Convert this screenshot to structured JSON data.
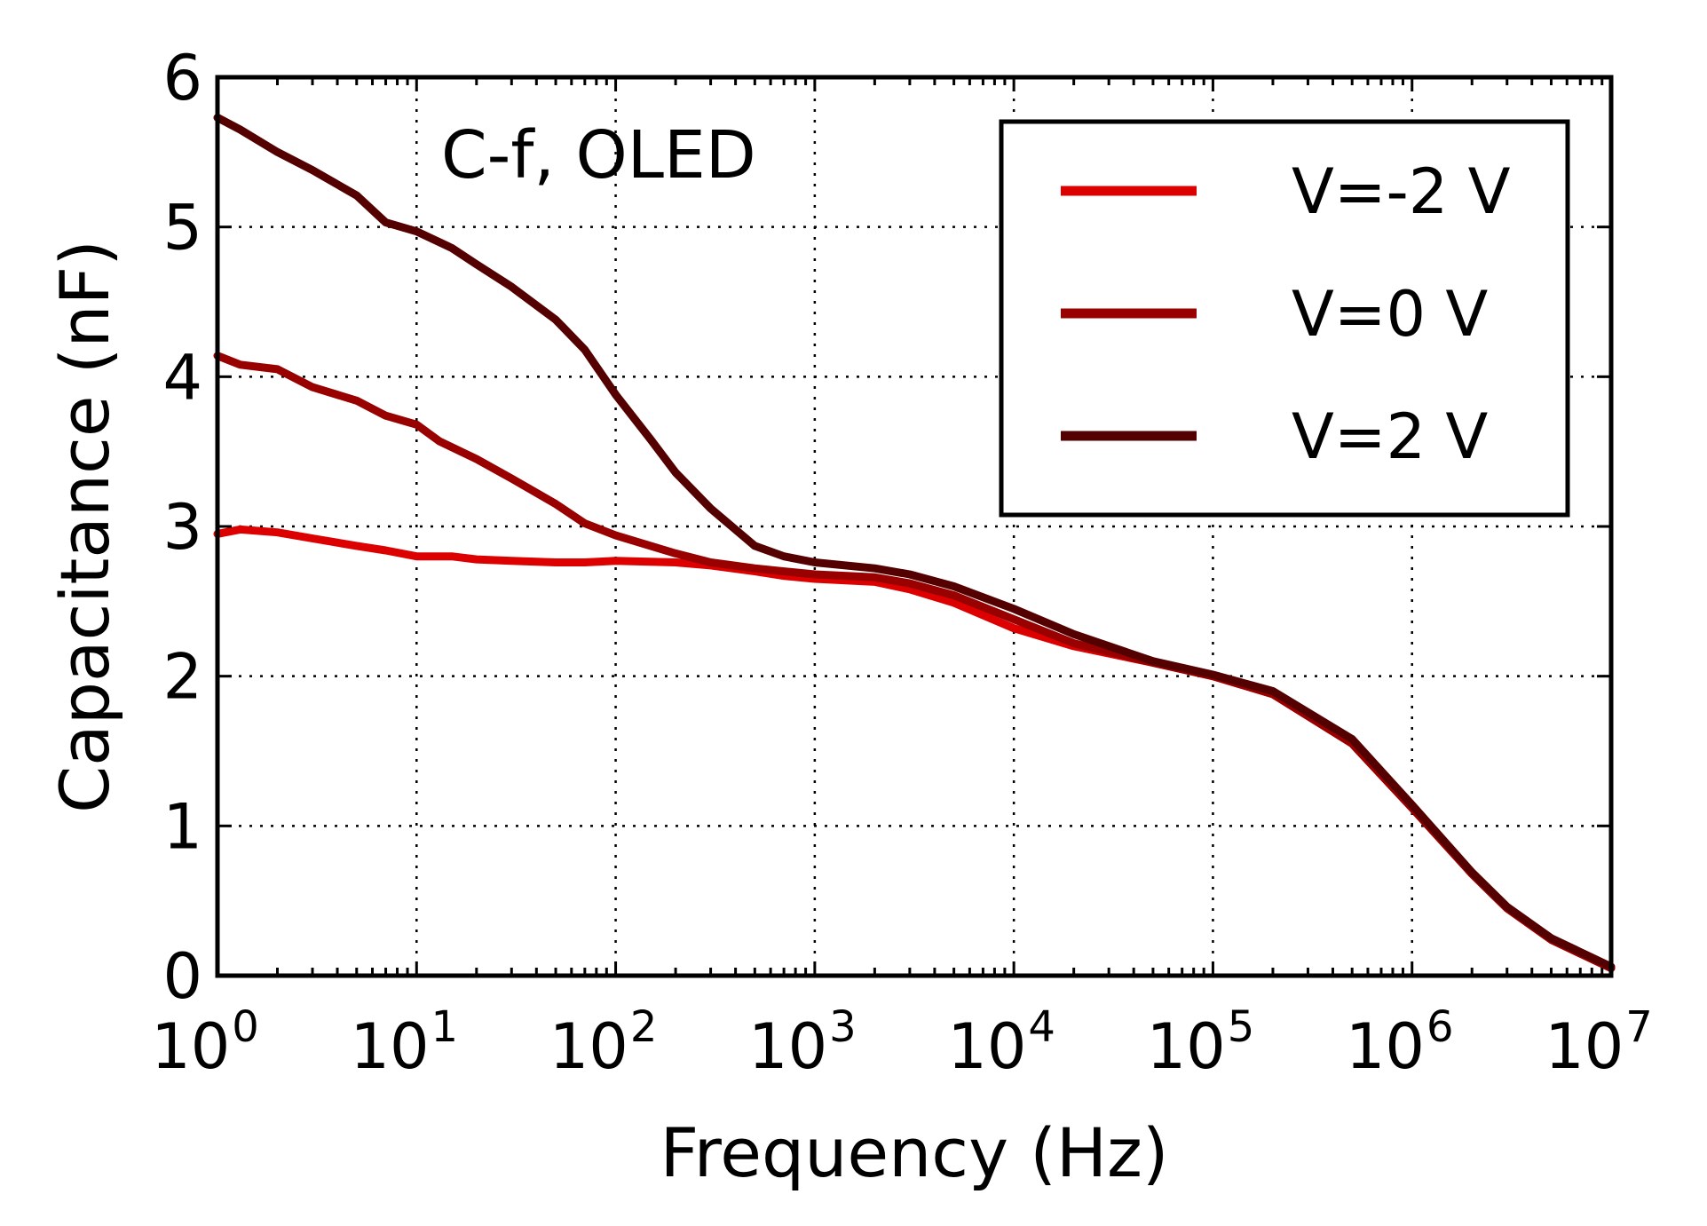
{
  "chart_data": {
    "type": "line",
    "annotation": "C-f, OLED",
    "xlabel": "Frequency (Hz)",
    "ylabel": "Capacitance (nF)",
    "xscale": "log",
    "xlim": [
      1,
      10000000
    ],
    "ylim": [
      0,
      6
    ],
    "grid": true,
    "legend_position": "top-right",
    "x_ticks": [
      {
        "base": "10",
        "exp": "0",
        "value": 1
      },
      {
        "base": "10",
        "exp": "1",
        "value": 10
      },
      {
        "base": "10",
        "exp": "2",
        "value": 100
      },
      {
        "base": "10",
        "exp": "3",
        "value": 1000
      },
      {
        "base": "10",
        "exp": "4",
        "value": 10000
      },
      {
        "base": "10",
        "exp": "5",
        "value": 100000
      },
      {
        "base": "10",
        "exp": "6",
        "value": 1000000
      },
      {
        "base": "10",
        "exp": "7",
        "value": 10000000
      }
    ],
    "y_ticks": [
      "0",
      "1",
      "2",
      "3",
      "4",
      "5",
      "6"
    ],
    "series": [
      {
        "name": "V=-2 V",
        "color": "#dd0000",
        "points": [
          [
            1,
            2.95
          ],
          [
            1.3,
            2.98
          ],
          [
            2,
            2.96
          ],
          [
            3,
            2.92
          ],
          [
            5,
            2.87
          ],
          [
            7,
            2.84
          ],
          [
            10,
            2.8
          ],
          [
            15,
            2.8
          ],
          [
            20,
            2.78
          ],
          [
            30,
            2.77
          ],
          [
            50,
            2.76
          ],
          [
            70,
            2.76
          ],
          [
            100,
            2.77
          ],
          [
            200,
            2.76
          ],
          [
            300,
            2.74
          ],
          [
            500,
            2.7
          ],
          [
            700,
            2.67
          ],
          [
            1000,
            2.65
          ],
          [
            2000,
            2.63
          ],
          [
            3000,
            2.58
          ],
          [
            5000,
            2.49
          ],
          [
            10000,
            2.32
          ],
          [
            20000,
            2.2
          ],
          [
            50000,
            2.09
          ],
          [
            100000,
            2.0
          ],
          [
            200000,
            1.88
          ],
          [
            500000,
            1.55
          ],
          [
            1000000,
            1.12
          ],
          [
            2000000,
            0.68
          ],
          [
            3000000,
            0.45
          ],
          [
            5000000,
            0.24
          ],
          [
            10000000,
            0.05
          ]
        ]
      },
      {
        "name": "V=0 V",
        "color": "#990000",
        "points": [
          [
            1,
            4.14
          ],
          [
            1.3,
            4.08
          ],
          [
            2,
            4.05
          ],
          [
            3,
            3.93
          ],
          [
            5,
            3.84
          ],
          [
            7,
            3.74
          ],
          [
            10,
            3.68
          ],
          [
            13,
            3.57
          ],
          [
            20,
            3.45
          ],
          [
            30,
            3.32
          ],
          [
            50,
            3.15
          ],
          [
            70,
            3.02
          ],
          [
            100,
            2.94
          ],
          [
            200,
            2.82
          ],
          [
            300,
            2.76
          ],
          [
            500,
            2.72
          ],
          [
            700,
            2.7
          ],
          [
            1000,
            2.68
          ],
          [
            2000,
            2.66
          ],
          [
            3000,
            2.62
          ],
          [
            5000,
            2.54
          ],
          [
            10000,
            2.38
          ],
          [
            20000,
            2.22
          ],
          [
            50000,
            2.09
          ],
          [
            100000,
            2.0
          ],
          [
            200000,
            1.88
          ],
          [
            500000,
            1.55
          ],
          [
            1000000,
            1.12
          ],
          [
            2000000,
            0.68
          ],
          [
            3000000,
            0.45
          ],
          [
            5000000,
            0.24
          ],
          [
            10000000,
            0.05
          ]
        ]
      },
      {
        "name": "V=2 V",
        "color": "#550000",
        "points": [
          [
            1,
            5.73
          ],
          [
            1.3,
            5.65
          ],
          [
            2,
            5.5
          ],
          [
            3,
            5.38
          ],
          [
            5,
            5.21
          ],
          [
            7,
            5.03
          ],
          [
            10,
            4.97
          ],
          [
            15,
            4.86
          ],
          [
            20,
            4.75
          ],
          [
            30,
            4.6
          ],
          [
            50,
            4.38
          ],
          [
            70,
            4.18
          ],
          [
            100,
            3.88
          ],
          [
            150,
            3.58
          ],
          [
            200,
            3.36
          ],
          [
            300,
            3.12
          ],
          [
            500,
            2.87
          ],
          [
            700,
            2.8
          ],
          [
            1000,
            2.76
          ],
          [
            2000,
            2.72
          ],
          [
            3000,
            2.68
          ],
          [
            5000,
            2.6
          ],
          [
            10000,
            2.45
          ],
          [
            20000,
            2.28
          ],
          [
            50000,
            2.1
          ],
          [
            100000,
            2.01
          ],
          [
            200000,
            1.9
          ],
          [
            500000,
            1.58
          ],
          [
            1000000,
            1.14
          ],
          [
            2000000,
            0.69
          ],
          [
            3000000,
            0.46
          ],
          [
            5000000,
            0.25
          ],
          [
            10000000,
            0.06
          ]
        ]
      }
    ]
  }
}
